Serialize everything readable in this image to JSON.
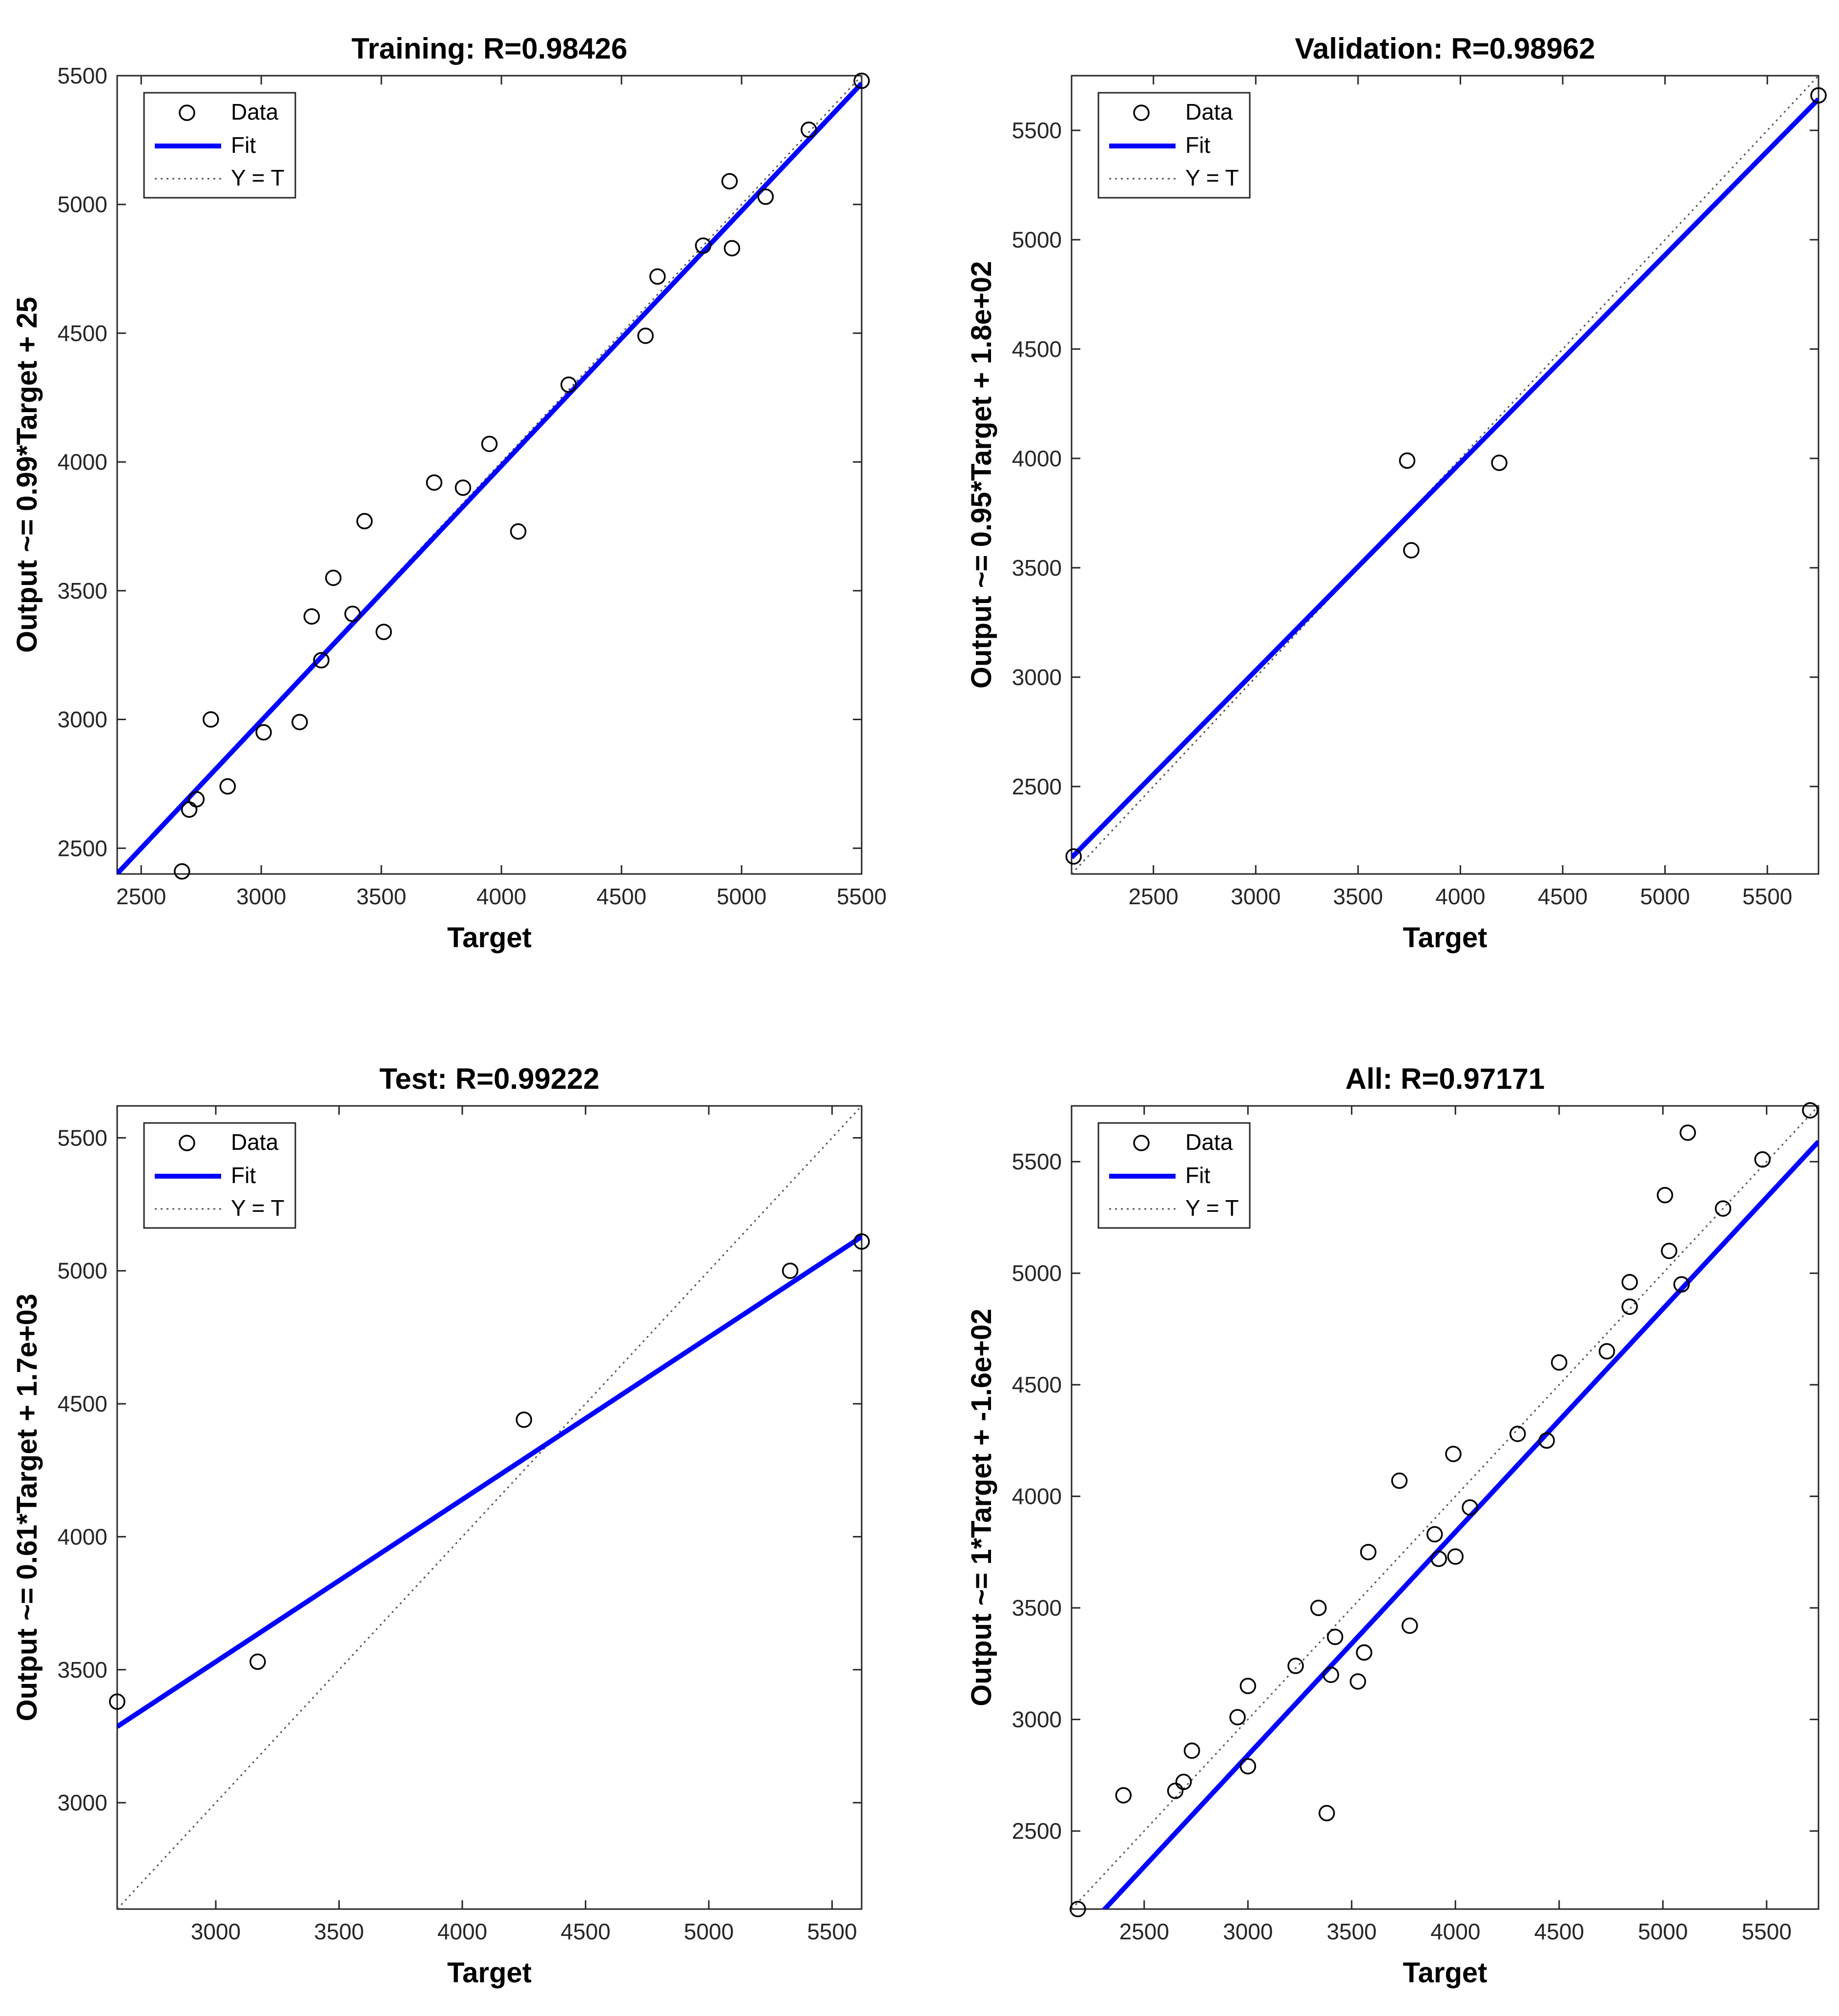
{
  "chart_data": [
    {
      "type": "scatter",
      "title": "Training: R=0.98426",
      "xlabel": "Target",
      "ylabel": "Output ~= 0.99*Target + 25",
      "xlim": [
        2400,
        5500
      ],
      "ylim": [
        2400,
        5500
      ],
      "xticks": [
        2500,
        3000,
        3500,
        4000,
        4500,
        5000,
        5500
      ],
      "yticks": [
        2500,
        3000,
        3500,
        4000,
        4500,
        5000,
        5500
      ],
      "fit": {
        "slope": 0.99,
        "intercept": 25
      },
      "legend": [
        "Data",
        "Fit",
        "Y = T"
      ],
      "points": [
        [
          2670,
          2410
        ],
        [
          2700,
          2650
        ],
        [
          2730,
          2690
        ],
        [
          2790,
          3000
        ],
        [
          2860,
          2740
        ],
        [
          3010,
          2950
        ],
        [
          3160,
          2990
        ],
        [
          3210,
          3400
        ],
        [
          3250,
          3230
        ],
        [
          3300,
          3550
        ],
        [
          3380,
          3410
        ],
        [
          3430,
          3770
        ],
        [
          3510,
          3340
        ],
        [
          3720,
          3920
        ],
        [
          3840,
          3900
        ],
        [
          3950,
          4070
        ],
        [
          4070,
          3730
        ],
        [
          4280,
          4300
        ],
        [
          4600,
          4490
        ],
        [
          4650,
          4720
        ],
        [
          4840,
          4840
        ],
        [
          4950,
          5090
        ],
        [
          4960,
          4830
        ],
        [
          5100,
          5030
        ],
        [
          5280,
          5290
        ],
        [
          5500,
          5480
        ]
      ]
    },
    {
      "type": "scatter",
      "title": "Validation: R=0.98962",
      "xlabel": "Target",
      "ylabel": "Output ~= 0.95*Target + 1.8e+02",
      "xlim": [
        2100,
        5750
      ],
      "ylim": [
        2100,
        5750
      ],
      "xticks": [
        2500,
        3000,
        3500,
        4000,
        4500,
        5000,
        5500
      ],
      "yticks": [
        2500,
        3000,
        3500,
        4000,
        4500,
        5000,
        5500
      ],
      "fit": {
        "slope": 0.95,
        "intercept": 180
      },
      "legend": [
        "Data",
        "Fit",
        "Y = T"
      ],
      "points": [
        [
          2110,
          2180
        ],
        [
          3740,
          3990
        ],
        [
          3760,
          3580
        ],
        [
          4190,
          3980
        ],
        [
          5750,
          5660
        ]
      ]
    },
    {
      "type": "scatter",
      "title": "Test: R=0.99222",
      "xlabel": "Target",
      "ylabel": "Output ~= 0.61*Target + 1.7e+03",
      "xlim": [
        2600,
        5620
      ],
      "ylim": [
        2600,
        5620
      ],
      "xticks": [
        3000,
        3500,
        4000,
        4500,
        5000,
        5500
      ],
      "yticks": [
        3000,
        3500,
        4000,
        4500,
        5000,
        5500
      ],
      "fit": {
        "slope": 0.61,
        "intercept": 1700
      },
      "legend": [
        "Data",
        "Fit",
        "Y = T"
      ],
      "points": [
        [
          2600,
          3380
        ],
        [
          3170,
          3530
        ],
        [
          4250,
          4440
        ],
        [
          5330,
          5000
        ],
        [
          5620,
          5110
        ]
      ]
    },
    {
      "type": "scatter",
      "title": "All: R=0.97171",
      "xlabel": "Target",
      "ylabel": "Output ~= 1*Target + -1.6e+02",
      "xlim": [
        2150,
        5750
      ],
      "ylim": [
        2150,
        5750
      ],
      "xticks": [
        2500,
        3000,
        3500,
        4000,
        4500,
        5000,
        5500
      ],
      "yticks": [
        2500,
        3000,
        3500,
        4000,
        4500,
        5000,
        5500
      ],
      "fit": {
        "slope": 1.0,
        "intercept": -160
      },
      "legend": [
        "Data",
        "Fit",
        "Y = T"
      ],
      "points": [
        [
          2180,
          2150
        ],
        [
          2400,
          2660
        ],
        [
          2650,
          2680
        ],
        [
          2690,
          2720
        ],
        [
          2730,
          2860
        ],
        [
          2950,
          3010
        ],
        [
          3000,
          3150
        ],
        [
          3000,
          2790
        ],
        [
          3230,
          3240
        ],
        [
          3340,
          3500
        ],
        [
          3380,
          2580
        ],
        [
          3400,
          3200
        ],
        [
          3420,
          3370
        ],
        [
          3530,
          3170
        ],
        [
          3560,
          3300
        ],
        [
          3580,
          3750
        ],
        [
          3730,
          4070
        ],
        [
          3780,
          3420
        ],
        [
          3900,
          3830
        ],
        [
          3920,
          3720
        ],
        [
          3990,
          4190
        ],
        [
          4000,
          3730
        ],
        [
          4070,
          3950
        ],
        [
          4300,
          4280
        ],
        [
          4440,
          4250
        ],
        [
          4500,
          4600
        ],
        [
          4730,
          4650
        ],
        [
          4840,
          4960
        ],
        [
          4840,
          4850
        ],
        [
          5010,
          5350
        ],
        [
          5030,
          5100
        ],
        [
          5090,
          4950
        ],
        [
          5120,
          5630
        ],
        [
          5290,
          5290
        ],
        [
          5480,
          5510
        ],
        [
          5710,
          5730
        ]
      ]
    }
  ]
}
